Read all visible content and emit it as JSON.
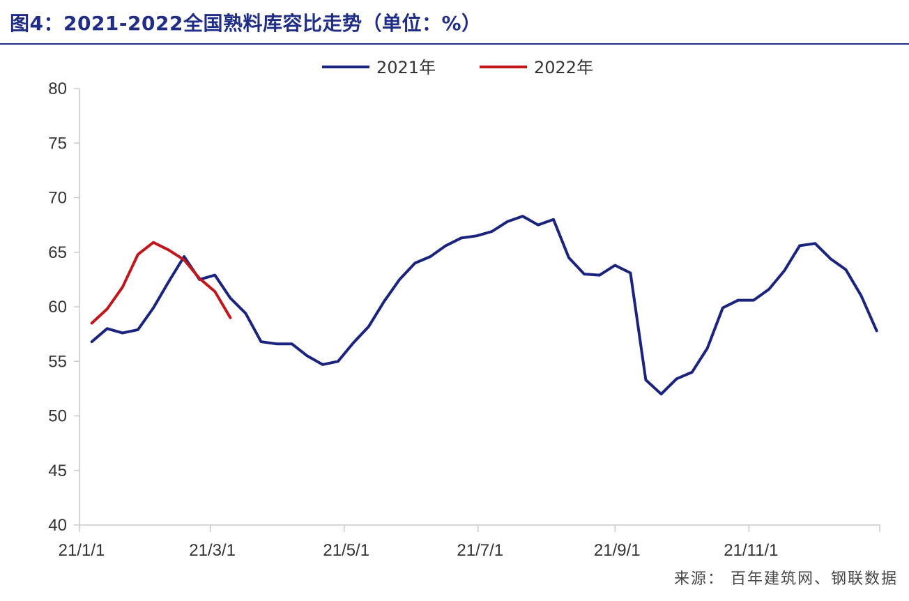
{
  "header": {
    "title": "图4：2021-2022全国熟料库容比走势（单位：%）"
  },
  "source": "来源： 百年建筑网、钢联数据",
  "chart_data": {
    "type": "line",
    "ylim": [
      40,
      80
    ],
    "y_ticks": [
      40,
      45,
      50,
      55,
      60,
      65,
      70,
      75,
      80
    ],
    "x_range_weeks": [
      0,
      52
    ],
    "x_ticks": [
      {
        "label": "21/1/1",
        "week": 0
      },
      {
        "label": "21/3/1",
        "week": 8.5
      },
      {
        "label": "21/5/1",
        "week": 17.2
      },
      {
        "label": "21/7/1",
        "week": 25.9
      },
      {
        "label": "21/9/1",
        "week": 34.8
      },
      {
        "label": "21/11/1",
        "week": 43.5
      }
    ],
    "legend": "top-center",
    "grid": false,
    "series": [
      {
        "name": "2021年",
        "color": "#1a237e",
        "values": [
          56.8,
          58.0,
          57.6,
          57.9,
          59.9,
          62.3,
          64.6,
          62.5,
          62.9,
          60.8,
          59.4,
          56.8,
          56.6,
          56.6,
          55.5,
          54.7,
          55.0,
          56.7,
          58.2,
          60.5,
          62.5,
          64.0,
          64.6,
          65.6,
          66.3,
          66.5,
          66.9,
          67.8,
          68.3,
          67.5,
          68.0,
          64.5,
          63.0,
          62.9,
          63.8,
          63.1,
          53.3,
          52.0,
          53.4,
          54.0,
          56.2,
          59.9,
          60.6,
          60.6,
          61.6,
          63.3,
          65.6,
          65.8,
          64.4,
          63.4,
          61.0,
          57.8
        ],
        "x_start_week": 0.8
      },
      {
        "name": "2022年",
        "color": "#c0161c",
        "values": [
          58.5,
          59.8,
          61.8,
          64.8,
          65.9,
          65.2,
          64.3,
          62.6,
          61.4,
          59.0
        ],
        "x_start_week": 0.8
      }
    ]
  }
}
